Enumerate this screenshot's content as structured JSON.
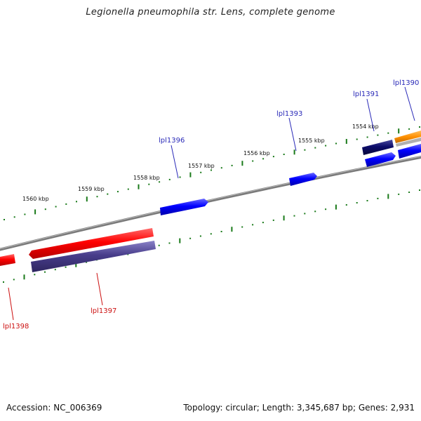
{
  "title": "Legionella pneumophila str. Lens, complete genome",
  "footer": {
    "accession": "Accession: NC_006369",
    "summary": "Topology: circular; Length: 3,345,687 bp; Genes: 2,931"
  },
  "colors": {
    "backbone": "#808080",
    "tick": "#1a7a1a",
    "forward_label": "#2a2ab8",
    "reverse_label": "#cc1111"
  },
  "scale_labels": [
    "1560 kbp",
    "1559 kbp",
    "1558 kbp",
    "1557 kbp",
    "1556 kbp",
    "1555 kbp",
    "1554 kbp"
  ],
  "gene_labels": [
    {
      "text": "lpl1390",
      "strand": "forward"
    },
    {
      "text": "lpl1391",
      "strand": "forward"
    },
    {
      "text": "lpl1393",
      "strand": "forward"
    },
    {
      "text": "lpl1396",
      "strand": "forward"
    },
    {
      "text": "lpl1397",
      "strand": "reverse"
    },
    {
      "text": "lpl1398",
      "strand": "reverse"
    }
  ]
}
